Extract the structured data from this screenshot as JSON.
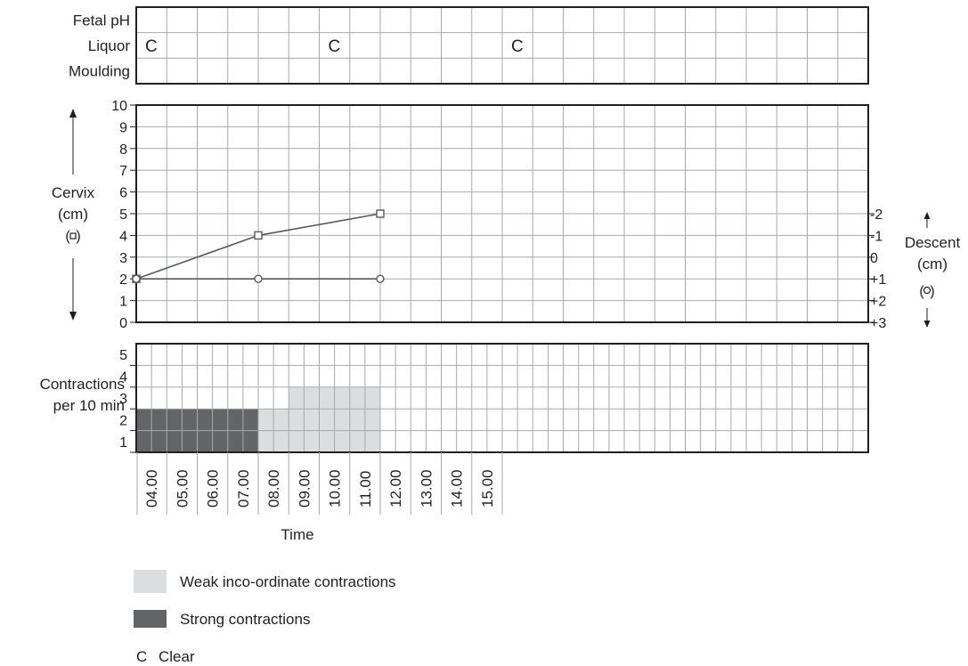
{
  "top_panel": {
    "row_labels": [
      "Fetal pH",
      "Liquor",
      "Moulding"
    ],
    "liquor_entries": [
      {
        "column": 0,
        "text": "C"
      },
      {
        "column": 6,
        "text": "C"
      },
      {
        "column": 12,
        "text": "C"
      }
    ]
  },
  "chart_data": {
    "type": "line",
    "cervix_axis": {
      "label_lines": [
        "Cervix",
        "(cm)"
      ],
      "marker_symbol": "square",
      "ylim": [
        0,
        10
      ],
      "ticks": [
        "0",
        "1",
        "2",
        "3",
        "4",
        "5",
        "6",
        "7",
        "8",
        "9",
        "10"
      ]
    },
    "descent_axis": {
      "label_lines": [
        "Descent",
        "(cm)"
      ],
      "marker_symbol": "circle",
      "ticks": [
        "-2",
        "-1",
        "0",
        "+1",
        "+2",
        "+3"
      ]
    },
    "x_axis": {
      "label": "Time",
      "ticks": [
        "04.00",
        "05.00",
        "06.00",
        "07.00",
        "08.00",
        "09.00",
        "10.00",
        "11.00",
        "12.00",
        "13.00",
        "14.00",
        "15.00"
      ]
    },
    "series": [
      {
        "type": "cervix",
        "marker": "square",
        "points": [
          {
            "x": "04.00",
            "y": 2
          },
          {
            "x": "08.00",
            "y": 4
          },
          {
            "x": "12.00",
            "y": 5
          }
        ]
      },
      {
        "type": "descent",
        "marker": "circle",
        "points": [
          {
            "x": "04.00",
            "y": "+1"
          },
          {
            "x": "08.00",
            "y": "+1"
          },
          {
            "x": "12.00",
            "y": "+1"
          }
        ]
      }
    ],
    "contractions": {
      "label_lines": [
        "Contractions",
        "per 10 min"
      ],
      "ylim": [
        0,
        5
      ],
      "ticks": [
        "1",
        "2",
        "3",
        "4",
        "5"
      ],
      "bars": [
        {
          "time": "04.00",
          "count": 2,
          "type": "strong"
        },
        {
          "time": "05.00",
          "count": 2,
          "type": "strong"
        },
        {
          "time": "06.00",
          "count": 2,
          "type": "strong"
        },
        {
          "time": "07.00",
          "count": 2,
          "type": "strong"
        },
        {
          "time": "08.00",
          "count": 2,
          "type": "weak"
        },
        {
          "time": "09.00",
          "count": 3,
          "type": "weak"
        },
        {
          "time": "10.00",
          "count": 3,
          "type": "weak"
        },
        {
          "time": "11.00",
          "count": 3,
          "type": "weak"
        }
      ]
    }
  },
  "legend": [
    {
      "key": "weak",
      "label": "Weak inco-ordinate contractions",
      "color": "#dcddde"
    },
    {
      "key": "strong",
      "label": "Strong contractions",
      "color": "#636466"
    },
    {
      "key": "clear",
      "symbol": "C",
      "label": "Clear"
    }
  ],
  "colors": {
    "grid": "#a7a9ac",
    "border": "#231f20",
    "line": "#58595b",
    "weak": "#dcddde",
    "strong": "#636466"
  }
}
